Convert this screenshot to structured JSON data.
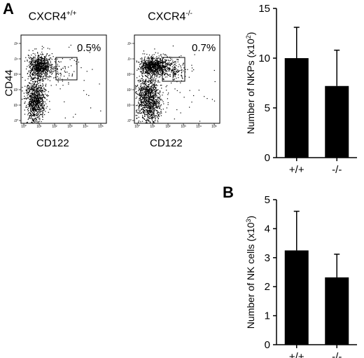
{
  "panels": {
    "a_letter": "A",
    "b_letter": "B"
  },
  "flow_plots": [
    {
      "title_base": "CXCR4",
      "title_sup": "+/+",
      "gate_percent": "0.5%",
      "xlabel": "CD122",
      "ylabel": "CD44",
      "ticks": [
        "10⁰",
        "10¹",
        "10²",
        "10³",
        "10⁴",
        "10⁵"
      ]
    },
    {
      "title_base": "CXCR4",
      "title_sup": "-/-",
      "gate_percent": "0.7%",
      "xlabel": "CD122",
      "ylabel": "",
      "ticks": [
        "10⁰",
        "10¹",
        "10²",
        "10³",
        "10⁴",
        "10⁵"
      ]
    }
  ],
  "chart_data": [
    {
      "type": "bar",
      "categories": [
        "+/+",
        "-/-"
      ],
      "values": [
        10.0,
        7.2
      ],
      "errors": [
        3.1,
        3.6
      ],
      "ylabel_base": "Number of NKPs (x10",
      "ylabel_sup": "2",
      "ylabel_end": ")",
      "ylim": [
        0,
        15
      ],
      "yticks": [
        0,
        5,
        10,
        15
      ],
      "bar_color": "#000000"
    },
    {
      "type": "bar",
      "categories": [
        "+/+",
        "-/-"
      ],
      "values": [
        3.25,
        2.32
      ],
      "errors": [
        1.35,
        0.8
      ],
      "ylabel_base": "Number of NK cells (x10",
      "ylabel_sup": "3",
      "ylabel_end": ")",
      "ylim": [
        0,
        5
      ],
      "yticks": [
        0,
        1,
        2,
        3,
        4,
        5
      ],
      "bar_color": "#000000"
    }
  ]
}
